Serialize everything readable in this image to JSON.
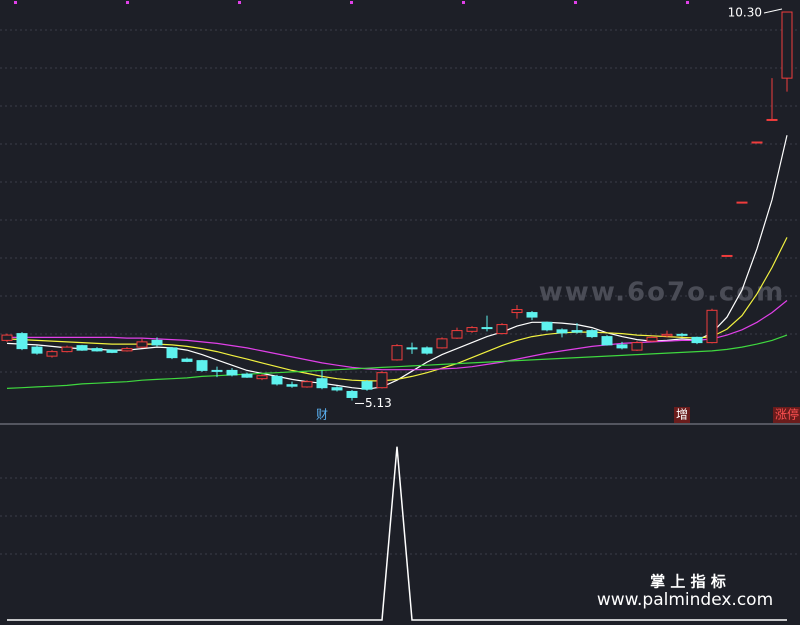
{
  "chart_data": [
    {
      "type": "candlestick",
      "ylim": [
        4.87,
        10.46
      ],
      "up_color": "#f03c3c",
      "down_color": "#5ef2ee",
      "open": [
        5.93,
        6.02,
        5.84,
        5.72,
        5.78,
        5.86,
        5.82,
        5.8,
        5.79,
        5.84,
        5.93,
        5.83,
        5.68,
        5.66,
        5.53,
        5.53,
        5.48,
        5.42,
        5.45,
        5.34,
        5.31,
        5.42,
        5.3,
        5.25,
        5.38,
        5.3,
        5.67,
        5.83,
        5.83,
        5.83,
        5.96,
        6.05,
        6.1,
        6.02,
        6.3,
        6.3,
        6.17,
        6.07,
        6.06,
        6.06,
        5.98,
        5.87,
        5.8,
        5.92,
        5.99,
        6.01,
        5.97,
        5.9,
        7.06,
        7.77,
        8.57,
        8.87,
        9.42
      ],
      "close": [
        6.0,
        5.82,
        5.76,
        5.78,
        5.84,
        5.8,
        5.79,
        5.77,
        5.82,
        5.91,
        5.87,
        5.7,
        5.65,
        5.53,
        5.52,
        5.47,
        5.44,
        5.46,
        5.35,
        5.32,
        5.38,
        5.3,
        5.27,
        5.17,
        5.28,
        5.5,
        5.86,
        5.82,
        5.76,
        5.95,
        6.06,
        6.1,
        6.09,
        6.14,
        6.34,
        6.24,
        6.07,
        6.03,
        6.04,
        5.98,
        5.87,
        5.83,
        5.9,
        5.97,
        6.01,
        6.0,
        5.9,
        6.33,
        7.06,
        7.77,
        8.57,
        8.87,
        10.3
      ],
      "high": [
        6.02,
        6.04,
        5.86,
        5.8,
        5.86,
        5.87,
        5.84,
        5.81,
        5.84,
        5.95,
        5.97,
        5.84,
        5.7,
        5.67,
        5.58,
        5.56,
        5.5,
        5.48,
        5.47,
        5.38,
        5.4,
        5.53,
        5.32,
        5.27,
        5.4,
        5.52,
        5.88,
        5.9,
        5.85,
        5.97,
        6.1,
        6.12,
        6.26,
        6.16,
        6.4,
        6.32,
        6.18,
        6.09,
        6.16,
        6.08,
        6.0,
        5.91,
        5.92,
        5.99,
        6.06,
        6.03,
        5.98,
        6.35,
        7.06,
        7.77,
        8.57,
        9.42,
        10.3
      ],
      "low": [
        5.91,
        5.8,
        5.74,
        5.7,
        5.77,
        5.79,
        5.78,
        5.76,
        5.78,
        5.83,
        5.85,
        5.68,
        5.64,
        5.51,
        5.44,
        5.45,
        5.43,
        5.4,
        5.33,
        5.3,
        5.3,
        5.28,
        5.25,
        5.13,
        5.26,
        5.29,
        5.66,
        5.75,
        5.74,
        5.82,
        5.95,
        6.03,
        6.05,
        6.01,
        6.22,
        6.2,
        6.05,
        5.97,
        6.02,
        5.96,
        5.86,
        5.81,
        5.79,
        5.91,
        5.97,
        5.98,
        5.88,
        5.89,
        7.06,
        7.77,
        8.57,
        8.87,
        9.24
      ],
      "series": [
        {
          "color": "#ffffff",
          "values": [
            5.89,
            5.88,
            5.87,
            5.85,
            5.83,
            5.82,
            5.81,
            5.8,
            5.8,
            5.82,
            5.84,
            5.83,
            5.8,
            5.74,
            5.67,
            5.6,
            5.53,
            5.49,
            5.45,
            5.41,
            5.38,
            5.36,
            5.33,
            5.3,
            5.28,
            5.31,
            5.4,
            5.52,
            5.64,
            5.74,
            5.82,
            5.9,
            5.98,
            6.04,
            6.12,
            6.17,
            6.17,
            6.16,
            6.14,
            6.1,
            6.03,
            5.98,
            5.94,
            5.92,
            5.93,
            5.95,
            5.93,
            6.03,
            6.24,
            6.6,
            7.15,
            7.8,
            8.66
          ]
        },
        {
          "color": "#f2f240",
          "values": [
            5.95,
            5.94,
            5.93,
            5.92,
            5.91,
            5.9,
            5.89,
            5.88,
            5.88,
            5.88,
            5.88,
            5.87,
            5.85,
            5.82,
            5.78,
            5.73,
            5.68,
            5.63,
            5.58,
            5.53,
            5.49,
            5.45,
            5.42,
            5.4,
            5.39,
            5.39,
            5.41,
            5.45,
            5.5,
            5.56,
            5.62,
            5.7,
            5.78,
            5.86,
            5.93,
            5.98,
            6.01,
            6.03,
            6.04,
            6.04,
            6.03,
            6.02,
            6.0,
            5.99,
            5.98,
            5.97,
            5.96,
            5.98,
            6.08,
            6.26,
            6.55,
            6.9,
            7.3
          ]
        },
        {
          "color": "#e040e8",
          "values": [
            5.97,
            5.97,
            5.97,
            5.97,
            5.97,
            5.97,
            5.97,
            5.97,
            5.96,
            5.96,
            5.95,
            5.94,
            5.93,
            5.91,
            5.89,
            5.86,
            5.83,
            5.79,
            5.75,
            5.71,
            5.67,
            5.63,
            5.6,
            5.57,
            5.55,
            5.54,
            5.54,
            5.54,
            5.54,
            5.55,
            5.56,
            5.58,
            5.61,
            5.64,
            5.68,
            5.72,
            5.76,
            5.79,
            5.82,
            5.85,
            5.87,
            5.89,
            5.9,
            5.91,
            5.92,
            5.93,
            5.93,
            5.95,
            6.0,
            6.07,
            6.17,
            6.3,
            6.46
          ]
        },
        {
          "color": "#3fd83f",
          "values": [
            5.29,
            5.3,
            5.31,
            5.32,
            5.33,
            5.35,
            5.36,
            5.37,
            5.38,
            5.4,
            5.41,
            5.42,
            5.43,
            5.45,
            5.46,
            5.47,
            5.48,
            5.49,
            5.5,
            5.51,
            5.52,
            5.53,
            5.54,
            5.55,
            5.56,
            5.57,
            5.58,
            5.59,
            5.6,
            5.61,
            5.62,
            5.63,
            5.64,
            5.65,
            5.66,
            5.67,
            5.68,
            5.69,
            5.7,
            5.71,
            5.72,
            5.73,
            5.74,
            5.75,
            5.76,
            5.77,
            5.78,
            5.79,
            5.81,
            5.84,
            5.88,
            5.93,
            6.0
          ]
        }
      ],
      "price_labels": [
        {
          "value": 10.3,
          "label": "10.30"
        },
        {
          "value": 5.13,
          "label": "5.13"
        }
      ],
      "markers": [
        "财",
        "增",
        "涨停"
      ],
      "watermark": "www.6o7o.com"
    },
    {
      "type": "line",
      "ylim": [
        0,
        1.05
      ],
      "color": "#ffffff",
      "values": [
        0,
        0,
        0,
        0,
        0,
        0,
        0,
        0,
        0,
        0,
        0,
        0,
        0,
        0,
        0,
        0,
        0,
        0,
        0,
        0,
        0,
        0,
        0,
        0,
        0,
        0,
        1,
        0,
        0,
        0,
        0,
        0,
        0,
        0,
        0,
        0,
        0,
        0,
        0,
        0,
        0,
        0,
        0,
        0,
        0,
        0,
        0,
        0,
        0,
        0,
        0,
        0,
        0
      ],
      "caption": "掌 上 指 标",
      "site": "www.palmindex.com"
    }
  ]
}
